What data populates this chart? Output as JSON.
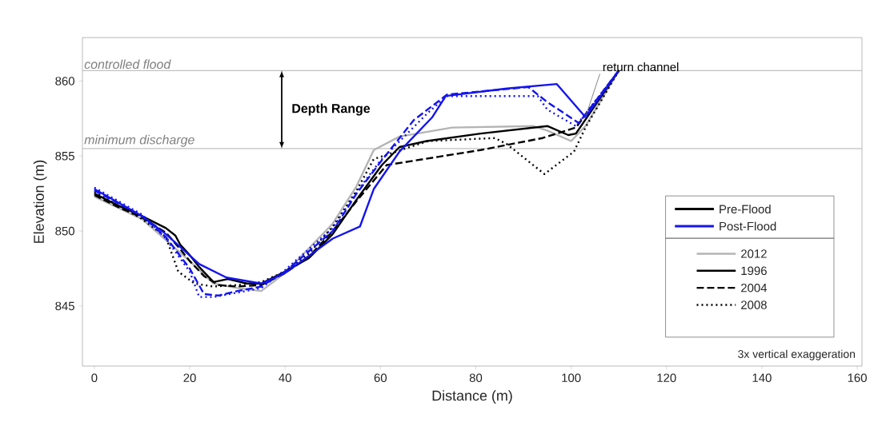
{
  "chart_data": {
    "type": "line",
    "xlabel": "Distance (m)",
    "ylabel": "Elevation (m)",
    "xlim": [
      -2.5,
      161
    ],
    "ylim": [
      841,
      862.9
    ],
    "xticks": [
      0,
      20,
      40,
      60,
      80,
      100,
      120,
      140,
      160
    ],
    "yticks": [
      845,
      850,
      855,
      860
    ],
    "grid": false,
    "legend": "right",
    "marker": "none",
    "series": [
      {
        "name": "2012",
        "color": "#b4b4b4",
        "line_style": "solid",
        "x": [
          0,
          10,
          20,
          25,
          30,
          35,
          40,
          50,
          55,
          58.6,
          64,
          75,
          92,
          95,
          100,
          103,
          110
        ],
        "values": [
          852.3,
          850.8,
          848.0,
          846.5,
          846.2,
          846.0,
          847.2,
          850.5,
          853.0,
          855.4,
          856.3,
          856.9,
          857.0,
          856.7,
          856.0,
          857.0,
          860.7
        ]
      },
      {
        "name": "1996",
        "color": "#000000",
        "line_style": "solid",
        "x": [
          0,
          5,
          10,
          15,
          17,
          18,
          20,
          22,
          25,
          28,
          32,
          35,
          40,
          45,
          50,
          55,
          60.3,
          64,
          69.7,
          81,
          95,
          99.4,
          101,
          110
        ],
        "values": [
          852.5,
          851.7,
          851.0,
          850.2,
          849.7,
          849.1,
          848.4,
          847.6,
          846.6,
          846.8,
          846.5,
          846.5,
          847.3,
          848.2,
          849.8,
          852.1,
          854.4,
          855.6,
          856.0,
          856.5,
          857.0,
          856.4,
          856.5,
          860.7
        ]
      },
      {
        "name": "2004",
        "color": "#000000",
        "line_style": "dashed",
        "x": [
          0,
          5,
          10,
          15,
          18,
          20,
          23,
          26,
          30,
          35,
          40,
          45,
          50,
          55,
          61.3,
          81,
          94,
          101,
          110
        ],
        "values": [
          852.4,
          851.6,
          850.9,
          849.9,
          848.8,
          848.0,
          847.0,
          846.4,
          846.3,
          846.4,
          847.2,
          848.3,
          850.0,
          852.0,
          854.4,
          855.4,
          856.2,
          856.9,
          860.7
        ]
      },
      {
        "name": "2008",
        "color": "#000000",
        "line_style": "dotted",
        "x": [
          0,
          5,
          10,
          15,
          17.6,
          21,
          25,
          30,
          35,
          40,
          45,
          50,
          55,
          58.6,
          70,
          84,
          86.5,
          94.4,
          100.6,
          103,
          110
        ],
        "values": [
          852.6,
          851.7,
          850.8,
          849.6,
          847.3,
          846.5,
          846.3,
          846.4,
          846.6,
          847.3,
          848.5,
          850.3,
          852.7,
          854.8,
          856.0,
          856.2,
          855.8,
          853.8,
          855.3,
          856.9,
          860.7
        ]
      },
      {
        "color": "#1414f0",
        "line_style": "solid",
        "x": [
          0,
          10,
          15,
          22,
          27.7,
          35,
          40,
          50,
          55.7,
          58.6,
          64,
          70.9,
          73.7,
          86.5,
          97,
          103,
          110
        ],
        "values": [
          852.8,
          851.0,
          849.8,
          847.8,
          846.9,
          846.5,
          847.2,
          849.5,
          850.3,
          852.8,
          855.3,
          857.6,
          859.0,
          859.5,
          859.8,
          857.6,
          860.7
        ]
      },
      {
        "color": "#1414f0",
        "line_style": "dashed",
        "x": [
          0,
          10,
          15,
          20,
          23,
          26,
          30,
          35,
          40,
          50,
          55,
          60,
          67,
          74,
          91,
          95,
          101.6,
          110
        ],
        "values": [
          852.7,
          851.0,
          849.6,
          847.5,
          845.8,
          845.7,
          846.0,
          846.3,
          847.3,
          850.0,
          852.5,
          854.6,
          857.4,
          859.1,
          859.6,
          858.6,
          857.2,
          860.7
        ]
      },
      {
        "color": "#1414f0",
        "line_style": "dotted",
        "x": [
          0,
          10,
          15,
          20,
          22,
          25,
          30,
          35,
          40,
          50,
          55,
          60,
          70,
          74,
          93,
          95,
          101,
          110
        ],
        "values": [
          852.9,
          851.1,
          849.5,
          847.3,
          845.6,
          845.6,
          845.9,
          846.2,
          847.4,
          850.2,
          852.6,
          854.7,
          857.9,
          859.0,
          859.0,
          858.1,
          857.0,
          860.7
        ]
      }
    ],
    "ref_lines": [
      {
        "axis": "y",
        "value": 860.7,
        "label": "controlled flood",
        "color": "#c0c0c0"
      },
      {
        "axis": "y",
        "value": 855.5,
        "label": "minimum discharge",
        "color": "#c0c0c0"
      }
    ],
    "annotations": [
      "Pre-Flood",
      "Post-Flood",
      "3x vertical exaggeration",
      "Depth Range",
      {
        "text": "return channel",
        "x": 103,
        "y": 857.6
      }
    ]
  }
}
